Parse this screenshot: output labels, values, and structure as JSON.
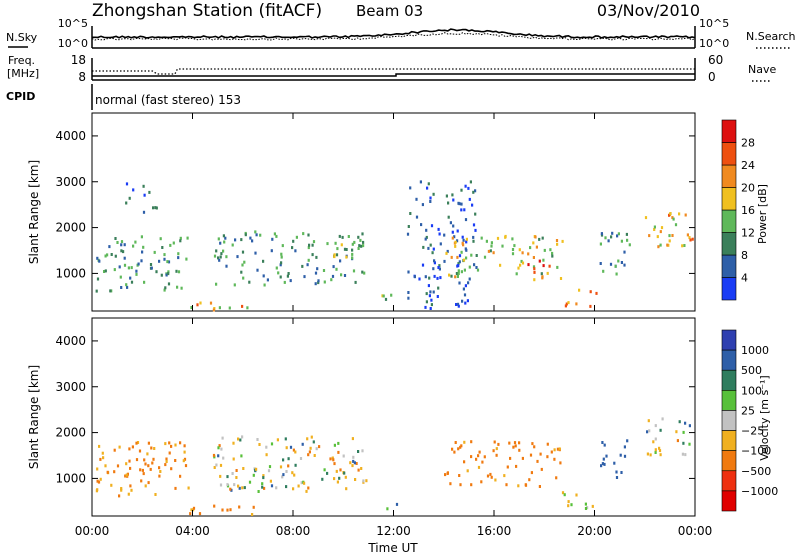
{
  "header": {
    "title": "Zhongshan Station (fitACF)",
    "beam": "Beam 03",
    "date": "03/Nov/2010"
  },
  "nsky_panel": {
    "left_label": "N.Sky",
    "right_label": "N.Search",
    "left_ticks": [
      "10^5",
      "10^0"
    ],
    "right_ticks": [
      "10^5",
      "10^0"
    ]
  },
  "freq_panel": {
    "left_label_1": "Freq.",
    "left_label_2": "[MHz]",
    "right_label": "Nave",
    "left_ticks": [
      "18",
      "8"
    ],
    "right_ticks": [
      "60",
      "0"
    ]
  },
  "cpid": {
    "label": "CPID",
    "text": "normal (fast stereo) 153"
  },
  "colors": {
    "power_scale": [
      "#1a3cf5",
      "#2e5fa8",
      "#3a7f5a",
      "#5fb85a",
      "#f0c020",
      "#f08a20",
      "#ee5010",
      "#dd1010"
    ],
    "velocity_scale": [
      "#2e3fb0",
      "#2e5fa8",
      "#2f7d5e",
      "#58c03a",
      "#c2c2c2",
      "#f0b020",
      "#f07a10",
      "#ee3010",
      "#e00000"
    ]
  },
  "chart_data": [
    {
      "type": "heatmap",
      "title": "Power",
      "ylabel": "Slant Range [km]",
      "ylim": [
        180,
        4500
      ],
      "yticks": [
        "1000",
        "2000",
        "3000",
        "4000"
      ],
      "xlim": [
        "00:00",
        "24:00"
      ],
      "colorbar": {
        "label": "Power [dB]",
        "ticks": [
          "4",
          "8",
          "12",
          "16",
          "20",
          "24",
          "28"
        ],
        "range": [
          0,
          30
        ]
      },
      "regions": [
        {
          "t": [
            0.1,
            3.8
          ],
          "r": [
            600,
            1800
          ],
          "mean": 10
        },
        {
          "t": [
            1.3,
            2.7
          ],
          "r": [
            2300,
            3000
          ],
          "mean": 7
        },
        {
          "t": [
            3.4,
            6.4
          ],
          "r": [
            180,
            400
          ],
          "mean": 18
        },
        {
          "t": [
            4.8,
            10.9
          ],
          "r": [
            700,
            1900
          ],
          "mean": 10
        },
        {
          "t": [
            9.5,
            10.9
          ],
          "r": [
            1300,
            1800
          ],
          "mean": 14
        },
        {
          "t": [
            11.4,
            12.1
          ],
          "r": [
            300,
            550
          ],
          "mean": 16
        },
        {
          "t": [
            12.5,
            15.3
          ],
          "r": [
            200,
            3000
          ],
          "mean": 5
        },
        {
          "t": [
            14.0,
            18.7
          ],
          "r": [
            800,
            1800
          ],
          "mean": 16
        },
        {
          "t": [
            17.2,
            18.3
          ],
          "r": [
            1000,
            1400
          ],
          "mean": 24
        },
        {
          "t": [
            18.7,
            20.1
          ],
          "r": [
            250,
            700
          ],
          "mean": 22
        },
        {
          "t": [
            20.2,
            21.4
          ],
          "r": [
            900,
            1900
          ],
          "mean": 9
        },
        {
          "t": [
            22.0,
            23.9
          ],
          "r": [
            1500,
            2300
          ],
          "mean": 18
        }
      ]
    },
    {
      "type": "heatmap",
      "title": "Velocity",
      "ylabel": "Slant Range [km]",
      "ylim": [
        180,
        4500
      ],
      "yticks": [
        "1000",
        "2000",
        "3000",
        "4000"
      ],
      "xlabel": "Time UT",
      "xticks": [
        "00:00",
        "04:00",
        "08:00",
        "12:00",
        "16:00",
        "20:00",
        "00:00"
      ],
      "xlim": [
        "00:00",
        "24:00"
      ],
      "colorbar": {
        "label": "Velocity [m s⁻¹]",
        "ticks": [
          "1000",
          "500",
          "100",
          "25",
          "−25",
          "−100",
          "−500",
          "−1000"
        ],
        "range": [
          -1000,
          1000
        ]
      },
      "regions": [
        {
          "t": [
            0.1,
            3.8
          ],
          "r": [
            600,
            1800
          ],
          "mean": -150
        },
        {
          "t": [
            4.8,
            10.9
          ],
          "r": [
            700,
            1900
          ],
          "mean": 0
        },
        {
          "t": [
            3.4,
            6.4
          ],
          "r": [
            180,
            400
          ],
          "mean": -200
        },
        {
          "t": [
            11.4,
            12.1
          ],
          "r": [
            300,
            550
          ],
          "mean": 150
        },
        {
          "t": [
            14.0,
            18.7
          ],
          "r": [
            800,
            1800
          ],
          "mean": -200
        },
        {
          "t": [
            18.7,
            20.1
          ],
          "r": [
            250,
            700
          ],
          "mean": 0
        },
        {
          "t": [
            20.2,
            21.4
          ],
          "r": [
            900,
            1900
          ],
          "mean": 300
        },
        {
          "t": [
            22.0,
            23.9
          ],
          "r": [
            1500,
            2300
          ],
          "mean": 0
        }
      ]
    }
  ]
}
